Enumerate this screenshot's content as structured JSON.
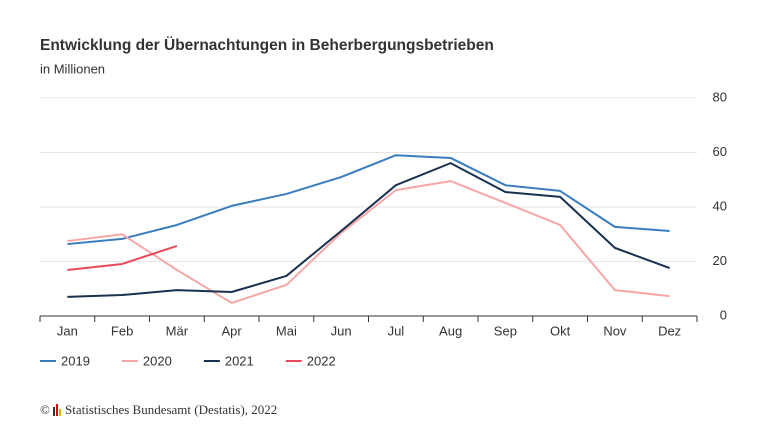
{
  "chart_data": {
    "type": "line",
    "title": "Entwicklung der Übernachtungen in Beherbergungsbetrieben",
    "subtitle": "in Millionen",
    "categories": [
      "Jan",
      "Feb",
      "Mär",
      "Apr",
      "Mai",
      "Jun",
      "Jul",
      "Aug",
      "Sep",
      "Okt",
      "Nov",
      "Dez"
    ],
    "series": [
      {
        "name": "2019",
        "color": "#3a7dbf",
        "values": [
          26.4,
          28.3,
          33.4,
          40.4,
          44.8,
          51,
          59,
          58,
          48,
          45.9,
          32.7,
          31.2
        ]
      },
      {
        "name": "2020",
        "color": "#f7a6a6",
        "values": [
          27.5,
          30,
          16.9,
          4.8,
          11.4,
          30.5,
          46.2,
          49.5,
          41.5,
          33.4,
          9.5,
          7.3
        ]
      },
      {
        "name": "2021",
        "color": "#1a3050",
        "values": [
          7,
          7.7,
          9.5,
          8.8,
          14.7,
          31.2,
          48,
          56.1,
          45.5,
          43.7,
          25,
          17.6
        ]
      },
      {
        "name": "2022",
        "color": "#e8495a",
        "values": [
          16.9,
          19.1,
          25.7,
          null,
          null,
          null,
          null,
          null,
          null,
          null,
          null,
          null
        ]
      }
    ],
    "ylim": [
      0,
      80
    ],
    "yticks": [
      0,
      20,
      40,
      60,
      80
    ],
    "grid": true,
    "copyright": "©",
    "source": "Statistisches Bundesamt (Destatis), 2022"
  }
}
